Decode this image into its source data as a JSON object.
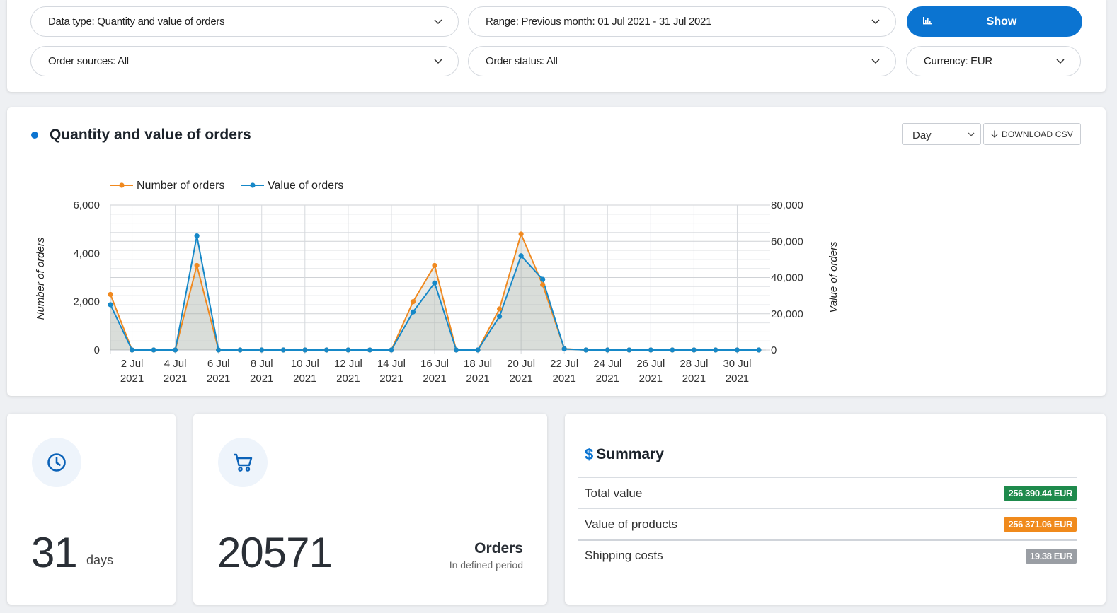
{
  "filters": {
    "data_type": "Data type: Quantity and value of orders",
    "range": "Range: Previous month: 01 Jul 2021 - 31 Jul 2021",
    "show_label": "Show",
    "order_sources": "Order sources: All",
    "order_status": "Order status: All",
    "currency": "Currency: EUR"
  },
  "chart_panel": {
    "title": "Quantity and value of orders",
    "granularity": "Day",
    "download_label": "DOWNLOAD CSV",
    "accent_color": "#0b74d1"
  },
  "chart_data": {
    "type": "line",
    "x": [
      "1 Jul 2021",
      "2 Jul 2021",
      "3 Jul 2021",
      "4 Jul 2021",
      "5 Jul 2021",
      "6 Jul 2021",
      "7 Jul 2021",
      "8 Jul 2021",
      "9 Jul 2021",
      "10 Jul 2021",
      "11 Jul 2021",
      "12 Jul 2021",
      "13 Jul 2021",
      "14 Jul 2021",
      "15 Jul 2021",
      "16 Jul 2021",
      "17 Jul 2021",
      "18 Jul 2021",
      "19 Jul 2021",
      "20 Jul 2021",
      "21 Jul 2021",
      "22 Jul 2021",
      "23 Jul 2021",
      "24 Jul 2021",
      "25 Jul 2021",
      "26 Jul 2021",
      "27 Jul 2021",
      "28 Jul 2021",
      "29 Jul 2021",
      "30 Jul 2021",
      "31 Jul 2021"
    ],
    "tick_labels": [
      {
        "l1": "2 Jul",
        "l2": "2021",
        "i": 1
      },
      {
        "l1": "4 Jul",
        "l2": "2021",
        "i": 3
      },
      {
        "l1": "6 Jul",
        "l2": "2021",
        "i": 5
      },
      {
        "l1": "8 Jul",
        "l2": "2021",
        "i": 7
      },
      {
        "l1": "10 Jul",
        "l2": "2021",
        "i": 9
      },
      {
        "l1": "12 Jul",
        "l2": "2021",
        "i": 11
      },
      {
        "l1": "14 Jul",
        "l2": "2021",
        "i": 13
      },
      {
        "l1": "16 Jul",
        "l2": "2021",
        "i": 15
      },
      {
        "l1": "18 Jul",
        "l2": "2021",
        "i": 17
      },
      {
        "l1": "20 Jul",
        "l2": "2021",
        "i": 19
      },
      {
        "l1": "22 Jul",
        "l2": "2021",
        "i": 21
      },
      {
        "l1": "24 Jul",
        "l2": "2021",
        "i": 23
      },
      {
        "l1": "26 Jul",
        "l2": "2021",
        "i": 25
      },
      {
        "l1": "28 Jul",
        "l2": "2021",
        "i": 27
      },
      {
        "l1": "30 Jul",
        "l2": "2021",
        "i": 29
      }
    ],
    "series": [
      {
        "name": "Number of orders",
        "axis": "left",
        "color": "#f0891f",
        "values": [
          2300,
          0,
          0,
          0,
          3500,
          0,
          0,
          0,
          0,
          0,
          0,
          0,
          0,
          0,
          2000,
          3500,
          0,
          0,
          1700,
          4800,
          2700,
          50,
          0,
          0,
          0,
          0,
          0,
          0,
          0,
          0,
          0
        ]
      },
      {
        "name": "Value of orders",
        "axis": "right",
        "color": "#1688c8",
        "values": [
          25000,
          0,
          0,
          0,
          63000,
          0,
          0,
          0,
          0,
          0,
          0,
          0,
          0,
          0,
          21000,
          37000,
          0,
          0,
          18500,
          52000,
          39000,
          600,
          0,
          0,
          0,
          0,
          0,
          0,
          0,
          0,
          0
        ]
      }
    ],
    "ylabel": "Number of orders",
    "y2label": "Value of orders",
    "ylim": [
      0,
      6000
    ],
    "y2lim": [
      0,
      80000
    ],
    "yticks": [
      "0",
      "2,000",
      "4,000",
      "6,000"
    ],
    "y2ticks": [
      "0",
      "20,000",
      "40,000",
      "60,000",
      "80,000"
    ],
    "grid": true,
    "legend": "top-left"
  },
  "kpis": {
    "days_value": "31",
    "days_unit": "days",
    "orders_value": "20571",
    "orders_label": "Orders",
    "orders_sub": "In defined period"
  },
  "summary": {
    "title": "Summary",
    "rows": [
      {
        "label": "Total value",
        "value": "256 390.44 EUR",
        "color": "#1e8a4c"
      },
      {
        "label": "Value of products",
        "value": "256 371.06 EUR",
        "color": "#f08a1c"
      },
      {
        "label": "Shipping costs",
        "value": "19.38 EUR",
        "color": "#9a9ea4"
      }
    ]
  }
}
